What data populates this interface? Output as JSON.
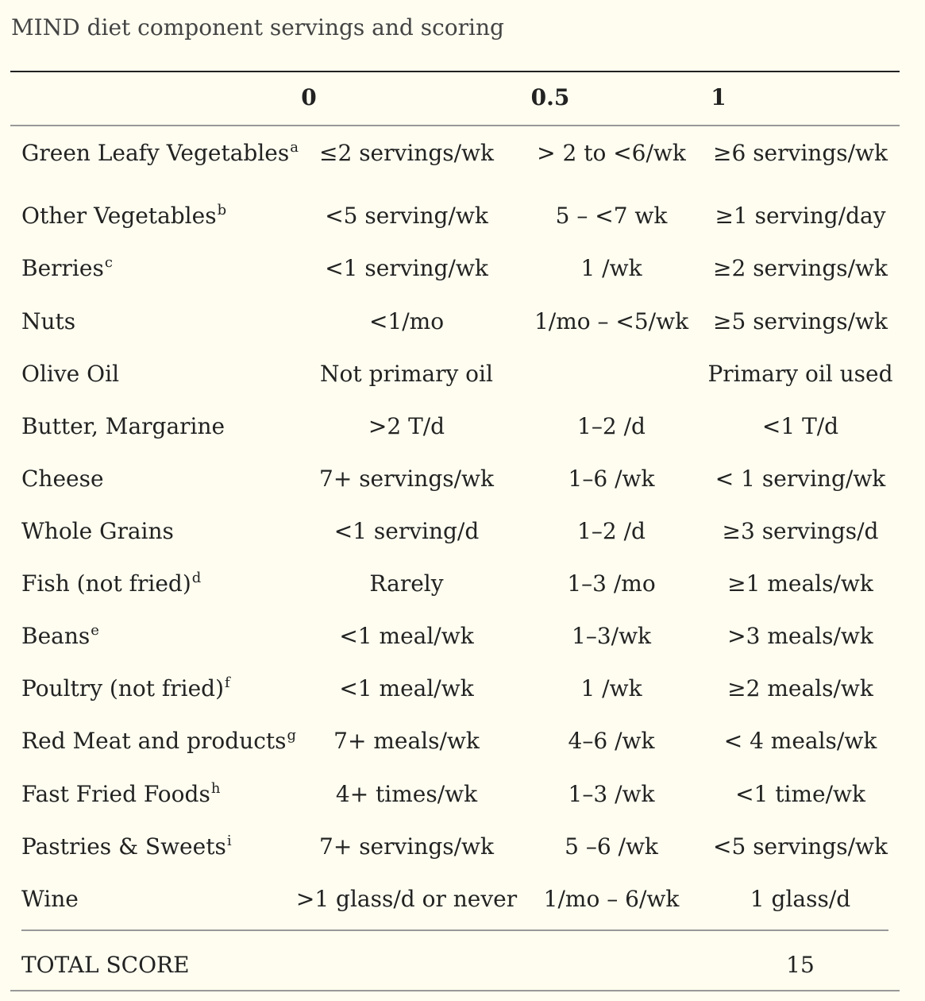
{
  "caption": "MIND diet component servings and scoring",
  "header": {
    "col0": "0",
    "col05": "0.5",
    "col1": "1"
  },
  "rows": [
    {
      "label": "Green Leafy Vegetables",
      "sup": "a",
      "s0": "≤2 servings/wk",
      "s05": "> 2 to <6/wk",
      "s1": "≥6 servings/wk"
    },
    {
      "label": "Other Vegetables",
      "sup": "b",
      "s0": "<5 serving/wk",
      "s05": "5 – <7 wk",
      "s1": "≥1 serving/day"
    },
    {
      "label": "Berries",
      "sup": "c",
      "s0": "<1 serving/wk",
      "s05": "1 /wk",
      "s1": "≥2 servings/wk"
    },
    {
      "label": "Nuts",
      "sup": "",
      "s0": "<1/mo",
      "s05": "1/mo – <5/wk",
      "s1": "≥5 servings/wk"
    },
    {
      "label": "Olive Oil",
      "sup": "",
      "s0": "Not primary oil",
      "s05": "",
      "s1": "Primary oil used"
    },
    {
      "label": "Butter, Margarine",
      "sup": "",
      "s0": ">2 T/d",
      "s05": "1–2 /d",
      "s1": "<1 T/d"
    },
    {
      "label": "Cheese",
      "sup": "",
      "s0": "7+ servings/wk",
      "s05": "1–6 /wk",
      "s1": "< 1 serving/wk"
    },
    {
      "label": "Whole Grains",
      "sup": "",
      "s0": "<1 serving/d",
      "s05": "1–2 /d",
      "s1": "≥3 servings/d"
    },
    {
      "label": "Fish (not fried)",
      "sup": "d",
      "s0": "Rarely",
      "s05": "1–3 /mo",
      "s1": "≥1 meals/wk"
    },
    {
      "label": "Beans",
      "sup": "e",
      "s0": "<1 meal/wk",
      "s05": "1–3/wk",
      "s1": ">3 meals/wk"
    },
    {
      "label": "Poultry (not fried)",
      "sup": "f",
      "s0": "<1 meal/wk",
      "s05": "1 /wk",
      "s1": "≥2 meals/wk"
    },
    {
      "label": "Red Meat and products",
      "sup": "g",
      "s0": "7+ meals/wk",
      "s05": "4–6 /wk",
      "s1": "< 4 meals/wk"
    },
    {
      "label": "Fast Fried Foods",
      "sup": "h",
      "s0": "4+ times/wk",
      "s05": "1–3 /wk",
      "s1": "<1 time/wk"
    },
    {
      "label": "Pastries & Sweets",
      "sup": "i",
      "s0": "7+ servings/wk",
      "s05": "5 –6 /wk",
      "s1": "<5 servings/wk"
    },
    {
      "label": "Wine",
      "sup": "",
      "s0": ">1 glass/d or never",
      "s05": "1/mo – 6/wk",
      "s1": "1 glass/d"
    }
  ],
  "total": {
    "label": "TOTAL SCORE",
    "value": "15"
  }
}
